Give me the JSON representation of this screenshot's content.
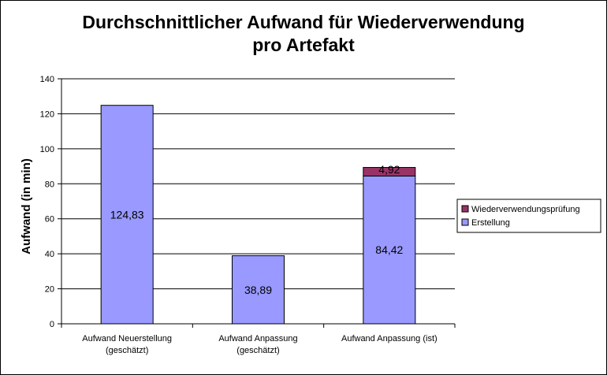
{
  "chart_data": {
    "type": "bar",
    "stacked": true,
    "title_lines": [
      "Durchschnittlicher Aufwand für Wiederverwendung",
      "pro Artefakt"
    ],
    "ylabel": "Aufwand (in min)",
    "xlabel": "",
    "ylim": [
      0,
      140
    ],
    "yticks": [
      0,
      20,
      40,
      60,
      80,
      100,
      120,
      140
    ],
    "grid": true,
    "legend_position": "right",
    "categories": [
      [
        "Aufwand Neuerstellung",
        "(geschätzt)"
      ],
      [
        "Aufwand Anpassung",
        "(geschätzt)"
      ],
      [
        "Aufwand Anpassung (ist)"
      ]
    ],
    "series": [
      {
        "name": "Erstellung",
        "color": "#9999ff",
        "values": [
          124.83,
          38.89,
          84.42
        ],
        "labels": [
          "124,83",
          "38,89",
          "84,42"
        ]
      },
      {
        "name": "Wiederverwendungsprüfung",
        "color": "#993366",
        "values": [
          0,
          0,
          4.92
        ],
        "labels": [
          "",
          "",
          "4,92"
        ]
      }
    ],
    "legend_order": [
      "Wiederverwendungsprüfung",
      "Erstellung"
    ]
  }
}
